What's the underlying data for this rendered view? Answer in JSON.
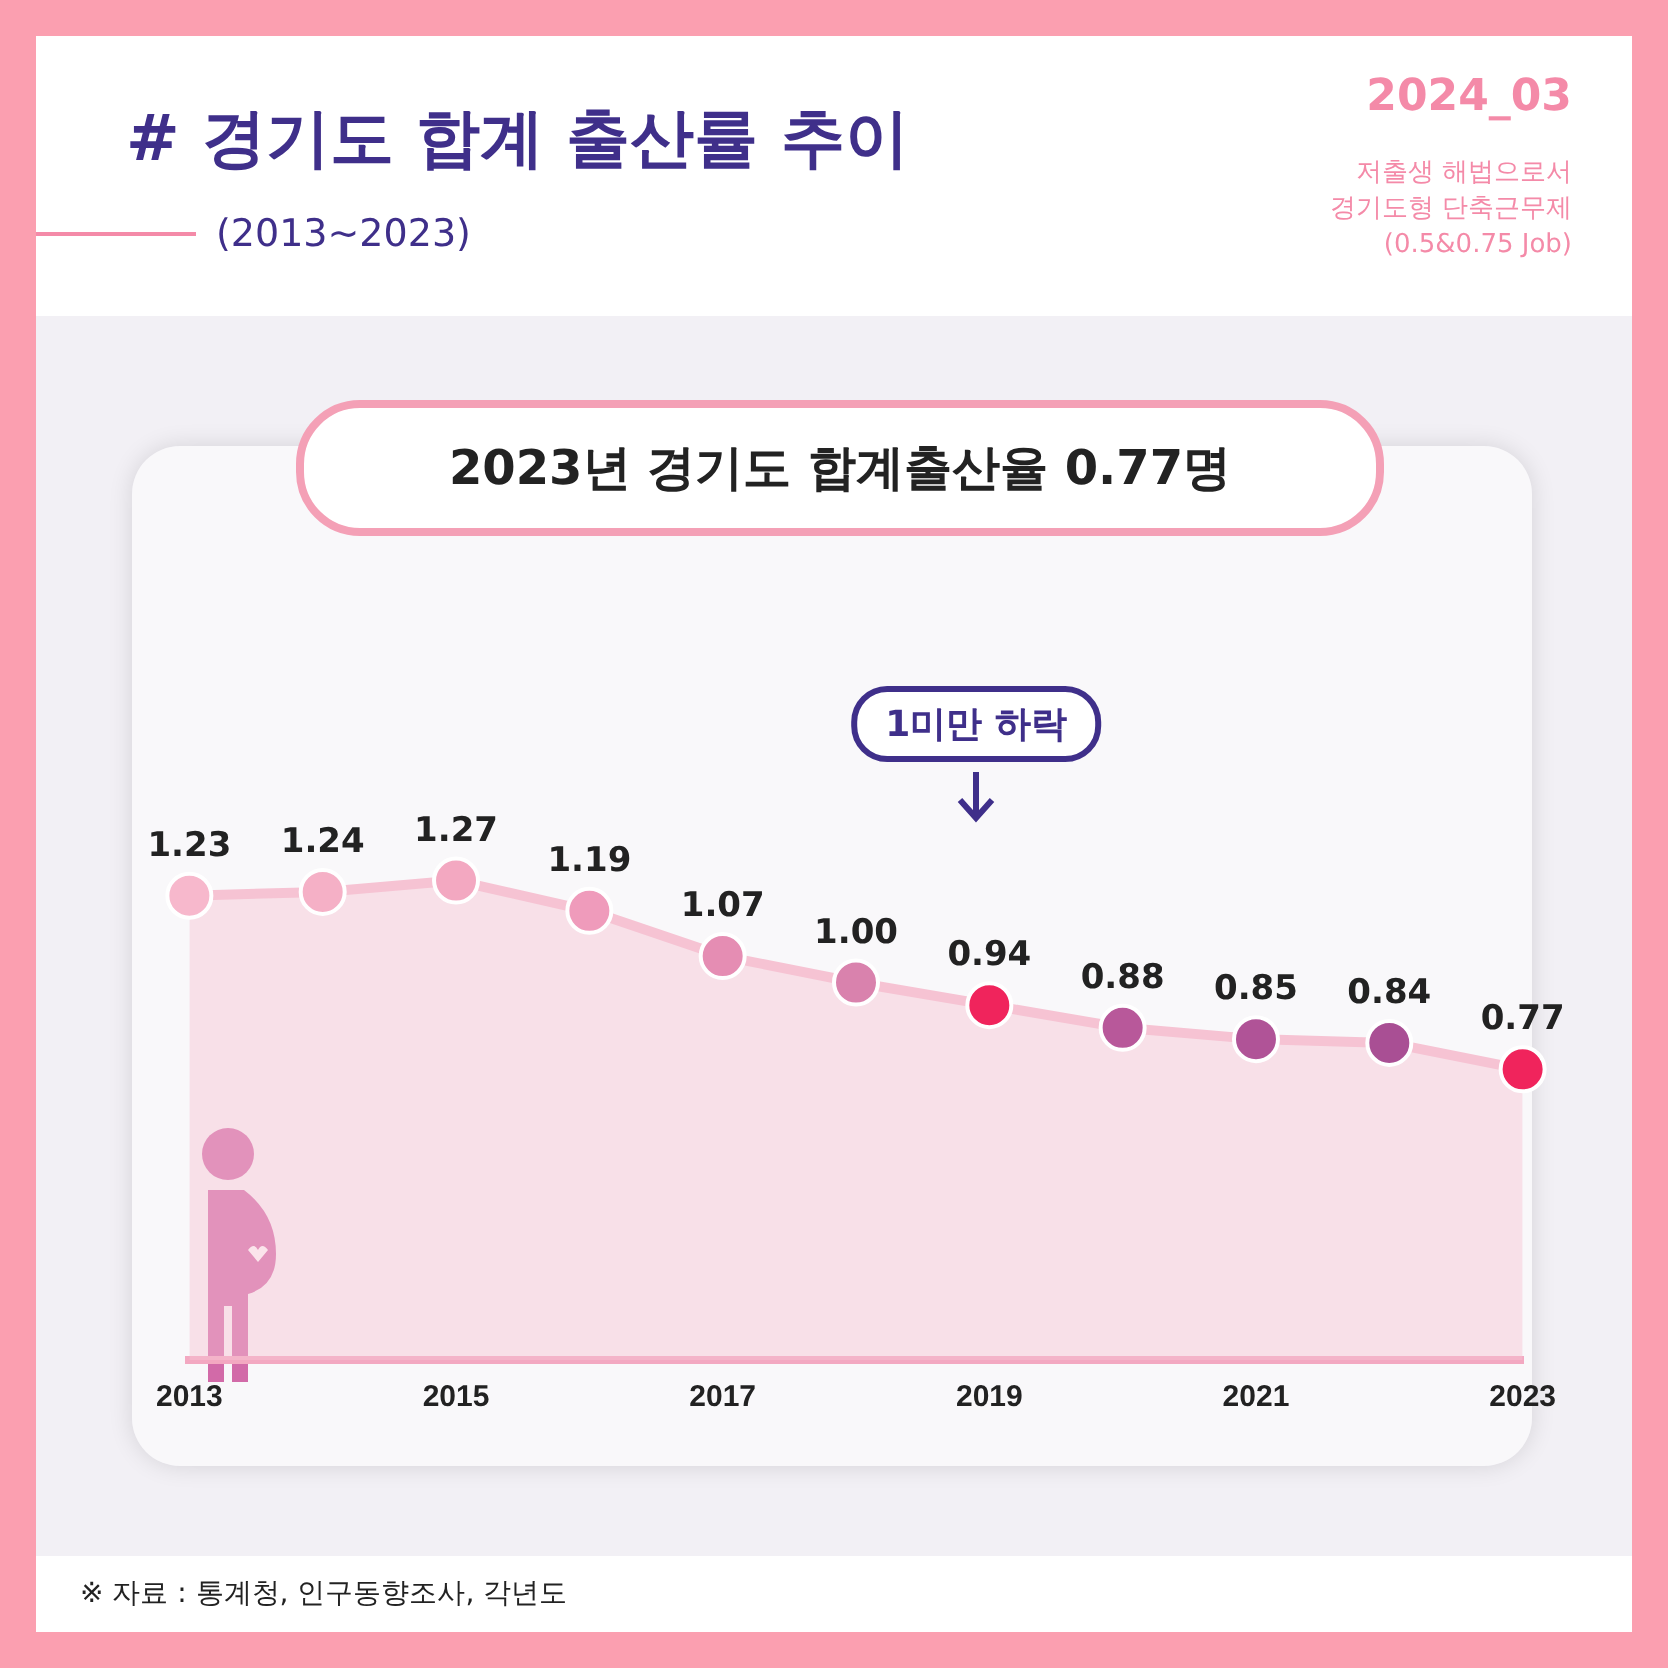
{
  "chart_data": {
    "type": "area",
    "title": "# 경기도 합계 출산률 추이",
    "subtitle": "(2013~2023)",
    "categories": [
      "2013",
      null,
      "2015",
      null,
      "2017",
      null,
      "2019",
      null,
      "2021",
      null,
      "2023"
    ],
    "series": [
      {
        "color": "#f6c3d3",
        "colors": [
          "#f7b8cc",
          "#f5b0c6",
          "#f3a8c1",
          "#ef9bbb",
          "#e58db3",
          "#d982ad",
          "#f0245c",
          "#b8589a",
          "#b05397",
          "#a94f94",
          "#f0245c"
        ],
        "values": [
          1.23,
          1.24,
          1.27,
          1.19,
          1.07,
          1.0,
          0.94,
          0.88,
          0.85,
          0.84,
          0.77
        ],
        "value_labels": [
          "1.23",
          "1.24",
          "1.27",
          "1.19",
          "1.07",
          "1.00",
          "0.94",
          "0.88",
          "0.85",
          "0.84",
          "0.77"
        ]
      }
    ],
    "tick_labels": "x",
    "grid": false,
    "legend": false,
    "marker": "circle",
    "annotations": [
      "2024_03",
      "저출생 해법으로서\n경기도형 단축근무제\n(0.5&0.75 Job)",
      "2023년 경기도 합계출산율 0.77명",
      "1미만 하락",
      "※ 자료 : 통계청, 인구동향조사, 각년도"
    ]
  }
}
